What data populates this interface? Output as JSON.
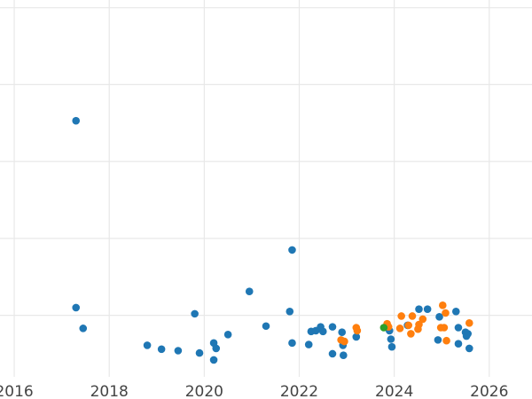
{
  "chart_data": {
    "type": "scatter",
    "title": "",
    "xlabel": "",
    "ylabel": "",
    "xlim": [
      2015.7,
      2026.9
    ],
    "ylim": [
      -0.8,
      4.1
    ],
    "grid": true,
    "legend": "none",
    "x_ticks": [
      2016,
      2018,
      2020,
      2022,
      2024,
      2026
    ],
    "x_tick_labels": [
      "2016",
      "2018",
      "2020",
      "2022",
      "2024",
      "2026"
    ],
    "y_ticks": [
      0,
      1,
      2,
      3,
      4
    ],
    "series": [
      {
        "color": "#1f77b4",
        "points": [
          [
            2017.3,
            2.53
          ],
          [
            2017.3,
            0.1
          ],
          [
            2017.45,
            -0.17
          ],
          [
            2018.8,
            -0.39
          ],
          [
            2019.1,
            -0.44
          ],
          [
            2019.45,
            -0.46
          ],
          [
            2019.8,
            0.02
          ],
          [
            2019.9,
            -0.49
          ],
          [
            2020.2,
            -0.58
          ],
          [
            2020.2,
            -0.36
          ],
          [
            2020.25,
            -0.43
          ],
          [
            2020.5,
            -0.25
          ],
          [
            2020.95,
            0.31
          ],
          [
            2021.3,
            -0.14
          ],
          [
            2021.8,
            0.05
          ],
          [
            2021.85,
            0.85
          ],
          [
            2021.85,
            -0.36
          ],
          [
            2022.2,
            -0.38
          ],
          [
            2022.25,
            -0.21
          ],
          [
            2022.35,
            -0.2
          ],
          [
            2022.45,
            -0.15
          ],
          [
            2022.5,
            -0.21
          ],
          [
            2022.7,
            -0.15
          ],
          [
            2022.7,
            -0.5
          ],
          [
            2022.9,
            -0.22
          ],
          [
            2022.92,
            -0.39
          ],
          [
            2022.93,
            -0.52
          ],
          [
            2023.2,
            -0.28
          ],
          [
            2023.9,
            -0.2
          ],
          [
            2023.93,
            -0.31
          ],
          [
            2023.95,
            -0.41
          ],
          [
            2024.28,
            -0.13
          ],
          [
            2024.52,
            0.08
          ],
          [
            2024.7,
            0.08
          ],
          [
            2024.92,
            -0.32
          ],
          [
            2024.95,
            -0.02
          ],
          [
            2025.3,
            0.05
          ],
          [
            2025.35,
            -0.16
          ],
          [
            2025.35,
            -0.37
          ],
          [
            2025.5,
            -0.22
          ],
          [
            2025.52,
            -0.27
          ],
          [
            2025.55,
            -0.24
          ],
          [
            2025.58,
            -0.43
          ]
        ]
      },
      {
        "color": "#ff7f0e",
        "points": [
          [
            2022.88,
            -0.32
          ],
          [
            2022.95,
            -0.34
          ],
          [
            2023.2,
            -0.16
          ],
          [
            2023.22,
            -0.2
          ],
          [
            2023.85,
            -0.11
          ],
          [
            2023.88,
            -0.15
          ],
          [
            2024.12,
            -0.17
          ],
          [
            2024.15,
            -0.01
          ],
          [
            2024.3,
            -0.13
          ],
          [
            2024.35,
            -0.24
          ],
          [
            2024.38,
            -0.01
          ],
          [
            2024.5,
            -0.18
          ],
          [
            2024.52,
            -0.12
          ],
          [
            2024.6,
            -0.05
          ],
          [
            2024.98,
            -0.16
          ],
          [
            2025.02,
            0.13
          ],
          [
            2025.05,
            -0.16
          ],
          [
            2025.08,
            0.03
          ],
          [
            2025.1,
            -0.33
          ],
          [
            2025.58,
            -0.1
          ]
        ]
      },
      {
        "color": "#2ca02c",
        "points": [
          [
            2023.78,
            -0.16
          ]
        ]
      }
    ]
  }
}
